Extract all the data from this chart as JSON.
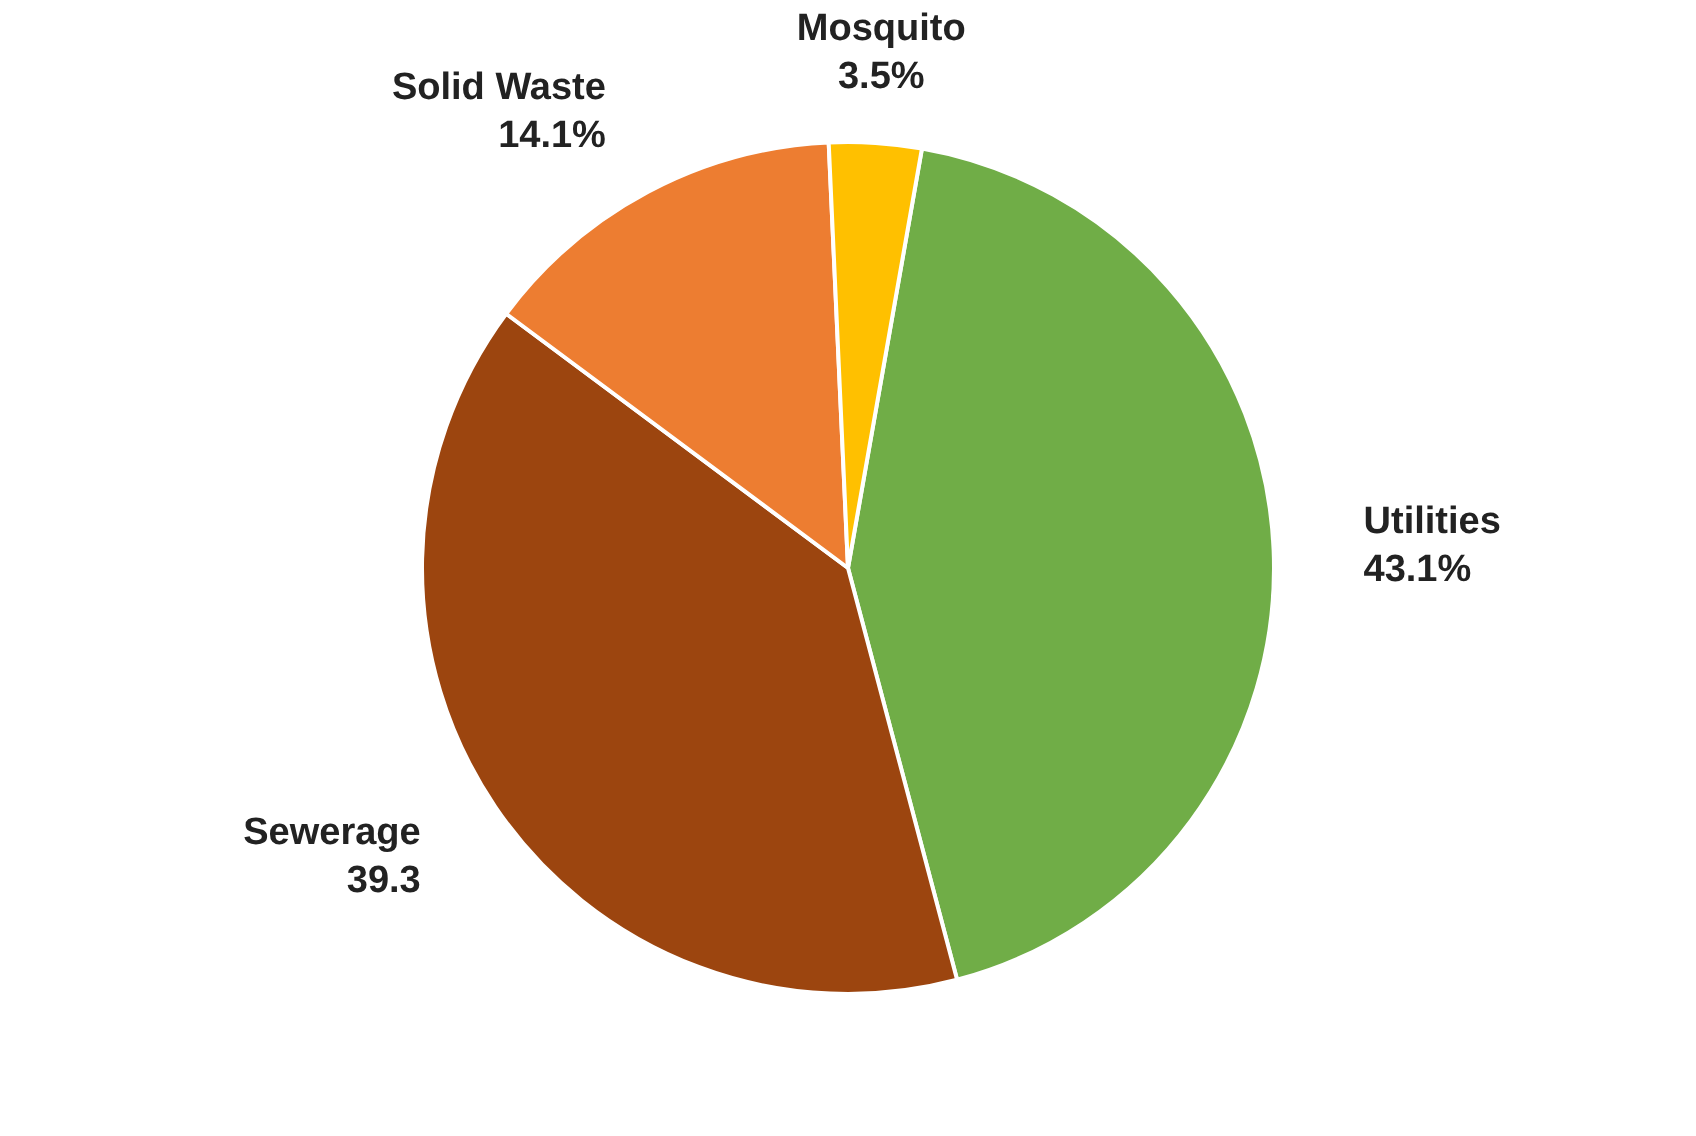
{
  "chart_data": {
    "type": "pie",
    "categories": [
      "Utilities",
      "Sewerage",
      "Solid Waste",
      "Mosquito"
    ],
    "values": [
      43.1,
      39.3,
      14.1,
      3.5
    ],
    "colors": [
      "#70ad47",
      "#9c450f",
      "#ed7d31",
      "#ffc000"
    ],
    "value_labels": [
      "43.1%",
      "39.3",
      "14.1%",
      "3.5%"
    ],
    "legend": false
  }
}
